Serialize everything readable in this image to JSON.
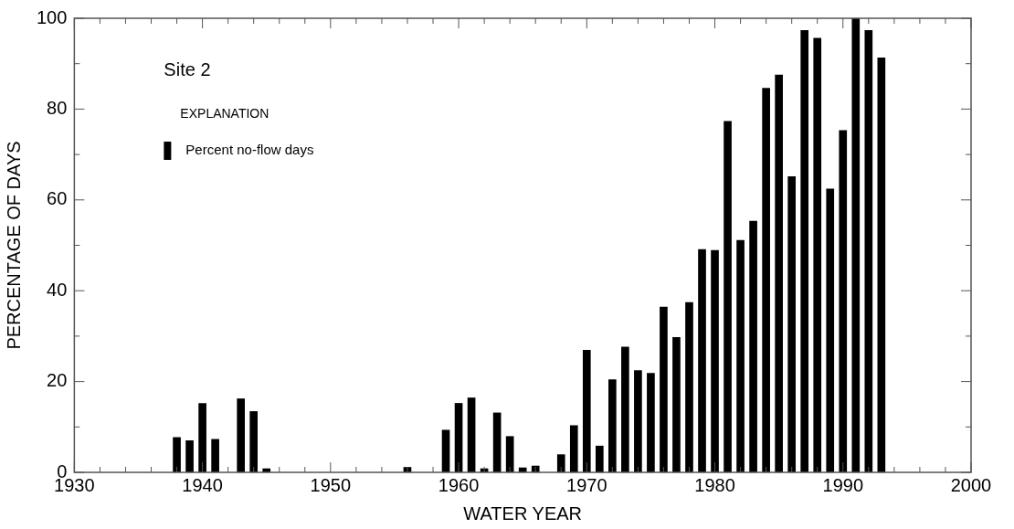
{
  "chart_data": {
    "type": "bar",
    "title": "Site 2",
    "xlabel": "WATER YEAR",
    "ylabel": "PERCENTAGE OF DAYS",
    "legend_title": "EXPLANATION",
    "legend": "top left",
    "grid": false,
    "x": [
      1938,
      1939,
      1940,
      1941,
      1943,
      1944,
      1945,
      1946,
      1947,
      1948,
      1949,
      1950,
      1951,
      1952,
      1953,
      1954,
      1955,
      1956,
      1957,
      1958,
      1959,
      1960,
      1961,
      1962,
      1963,
      1964,
      1965,
      1966,
      1967,
      1968,
      1969,
      1970,
      1971,
      1972,
      1973,
      1974,
      1975,
      1976,
      1977,
      1978,
      1979,
      1980,
      1981,
      1982,
      1983,
      1984,
      1985,
      1986,
      1987,
      1988,
      1989,
      1990,
      1991,
      1992,
      1993
    ],
    "series": [
      {
        "name": "Percent no-flow days",
        "color": "#000000",
        "values": [
          7.7,
          7.0,
          15.2,
          7.3,
          16.2,
          13.4,
          0.8,
          null,
          null,
          null,
          null,
          null,
          null,
          null,
          null,
          null,
          null,
          1.1,
          null,
          null,
          9.3,
          15.2,
          16.4,
          0.8,
          13.1,
          7.9,
          1.0,
          1.4,
          null,
          3.9,
          10.3,
          26.9,
          5.8,
          20.4,
          27.6,
          22.4,
          21.8,
          36.4,
          29.7,
          37.4,
          49.1,
          48.9,
          77.3,
          51.1,
          55.3,
          84.6,
          87.5,
          65.1,
          97.3,
          95.6,
          62.4,
          75.3,
          100,
          97.3,
          91.3
        ]
      }
    ],
    "xlim": [
      1930,
      2000
    ],
    "xticks": [
      1930,
      {
        "value": 1932,
        "label": null
      },
      {
        "value": 1934,
        "label": null
      },
      {
        "value": 1936,
        "label": null
      },
      {
        "value": 1938,
        "label": null
      },
      1940,
      {
        "value": 1942,
        "label": null
      },
      {
        "value": 1944,
        "label": null
      },
      {
        "value": 1946,
        "label": null
      },
      {
        "value": 1948,
        "label": null
      },
      1950,
      {
        "value": 1952,
        "label": null
      },
      {
        "value": 1954,
        "label": null
      },
      {
        "value": 1956,
        "label": null
      },
      {
        "value": 1958,
        "label": null
      },
      1960,
      {
        "value": 1962,
        "label": null
      },
      {
        "value": 1964,
        "label": null
      },
      {
        "value": 1966,
        "label": null
      },
      {
        "value": 1968,
        "label": null
      },
      1970,
      {
        "value": 1972,
        "label": null
      },
      {
        "value": 1974,
        "label": null
      },
      {
        "value": 1976,
        "label": null
      },
      {
        "value": 1978,
        "label": null
      },
      1980,
      {
        "value": 1982,
        "label": null
      },
      {
        "value": 1984,
        "label": null
      },
      {
        "value": 1986,
        "label": null
      },
      {
        "value": 1988,
        "label": null
      },
      1990,
      {
        "value": 1992,
        "label": null
      },
      {
        "value": 1994,
        "label": null
      },
      {
        "value": 1996,
        "label": null
      },
      {
        "value": 1998,
        "label": null
      },
      2000
    ],
    "ylim": [
      0,
      100
    ],
    "yticks": [
      0,
      {
        "value": 10,
        "label": null
      },
      20,
      {
        "value": 30,
        "label": null
      },
      40,
      {
        "value": 50,
        "label": null
      },
      60,
      {
        "value": 70,
        "label": null
      },
      80,
      {
        "value": 90,
        "label": null
      },
      100
    ]
  }
}
